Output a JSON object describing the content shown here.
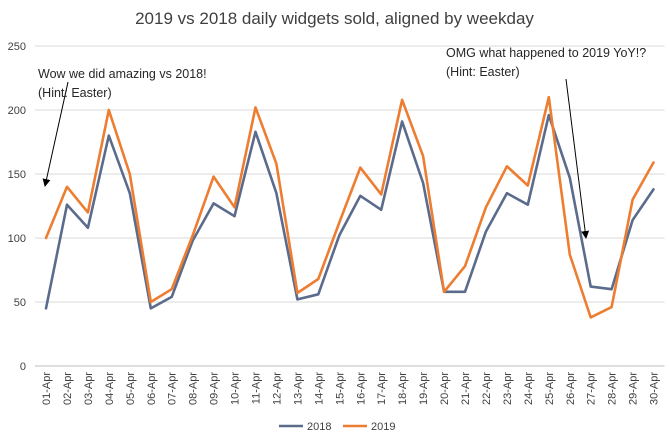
{
  "chart_data": {
    "type": "line",
    "title": "2019 vs 2018 daily widgets sold, aligned by weekday",
    "xlabel": "",
    "ylabel": "",
    "ylim": [
      0,
      250
    ],
    "yticks": [
      "0",
      "50",
      "100",
      "150",
      "200",
      "250"
    ],
    "grid": true,
    "legend_position": "bottom",
    "categories": [
      "01-Apr",
      "02-Apr",
      "03-Apr",
      "04-Apr",
      "05-Apr",
      "06-Apr",
      "07-Apr",
      "08-Apr",
      "09-Apr",
      "10-Apr",
      "11-Apr",
      "12-Apr",
      "13-Apr",
      "14-Apr",
      "15-Apr",
      "16-Apr",
      "17-Apr",
      "18-Apr",
      "19-Apr",
      "20-Apr",
      "21-Apr",
      "22-Apr",
      "23-Apr",
      "24-Apr",
      "25-Apr",
      "26-Apr",
      "27-Apr",
      "28-Apr",
      "29-Apr",
      "30-Apr"
    ],
    "series": [
      {
        "name": "2018",
        "color": "#5B6B8C",
        "values": [
          45,
          126,
          108,
          180,
          135,
          45,
          54,
          98,
          127,
          117,
          183,
          135,
          52,
          56,
          102,
          133,
          122,
          191,
          143,
          58,
          58,
          105,
          135,
          126,
          196,
          147,
          62,
          60,
          114,
          138
        ]
      },
      {
        "name": "2019",
        "color": "#ED7D31",
        "values": [
          100,
          140,
          120,
          200,
          150,
          50,
          60,
          102,
          148,
          124,
          202,
          158,
          57,
          68,
          112,
          155,
          134,
          208,
          164,
          58,
          78,
          124,
          156,
          141,
          210,
          87,
          38,
          46,
          130,
          159
        ]
      }
    ],
    "annotations": [
      {
        "lines": [
          "Wow we did amazing vs 2018!",
          "(Hint: Easter)"
        ],
        "target_category": "01-Apr",
        "target_value": 100
      },
      {
        "lines": [
          "OMG what happened to 2019 YoY!?",
          "(Hint: Easter)"
        ],
        "target_category": "27-Apr",
        "target_value": 88
      }
    ]
  }
}
